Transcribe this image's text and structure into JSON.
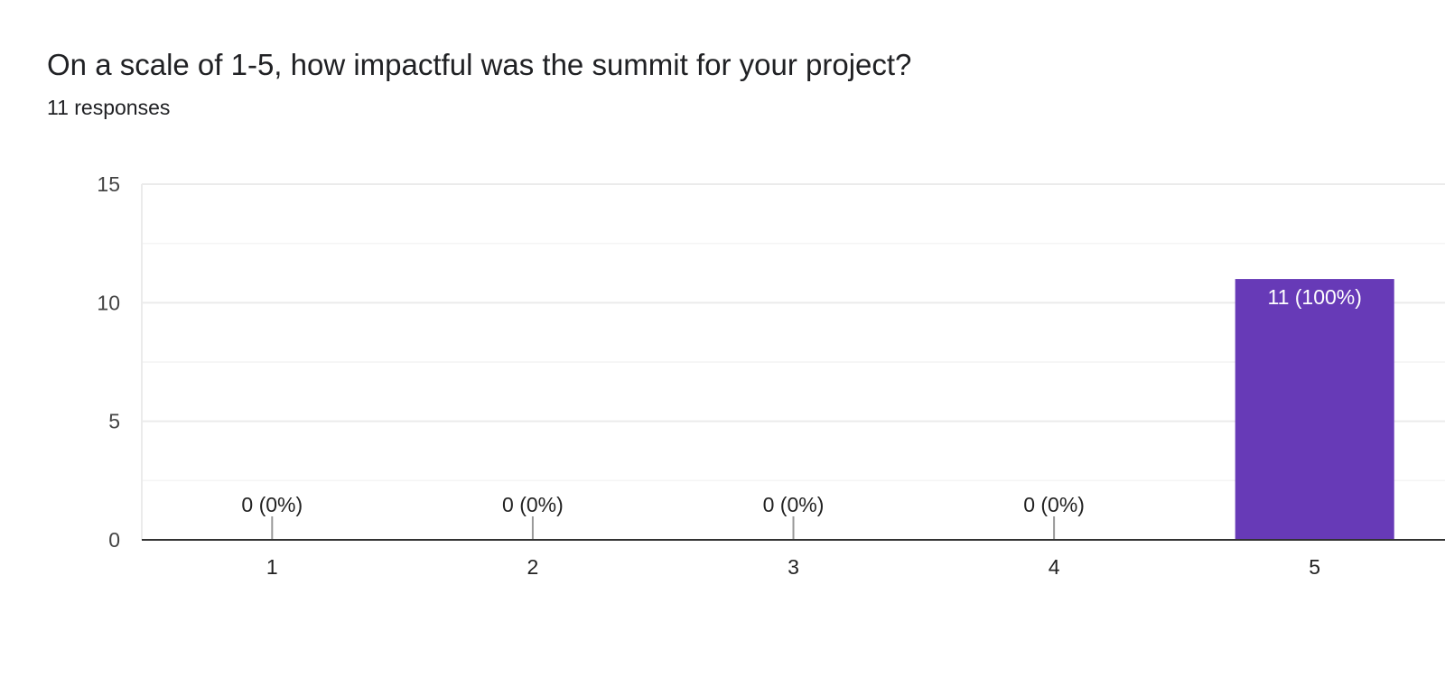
{
  "question": {
    "title": "On a scale of 1-5, how impactful was the summit for your project?",
    "responses": "11 responses"
  },
  "colors": {
    "bar": "#673ab7",
    "grid": "#ebebeb",
    "baseline": "#333333"
  },
  "chart_data": {
    "type": "bar",
    "title": "",
    "xlabel": "",
    "ylabel": "",
    "categories": [
      "1",
      "2",
      "3",
      "4",
      "5"
    ],
    "values": [
      0,
      0,
      0,
      0,
      11
    ],
    "data_labels": [
      "0 (0%)",
      "0 (0%)",
      "0 (0%)",
      "0 (0%)",
      "11 (100%)"
    ],
    "ylim": [
      0,
      15
    ],
    "yticks": [
      0,
      5,
      10,
      15
    ],
    "grid": true,
    "legend": "none"
  }
}
